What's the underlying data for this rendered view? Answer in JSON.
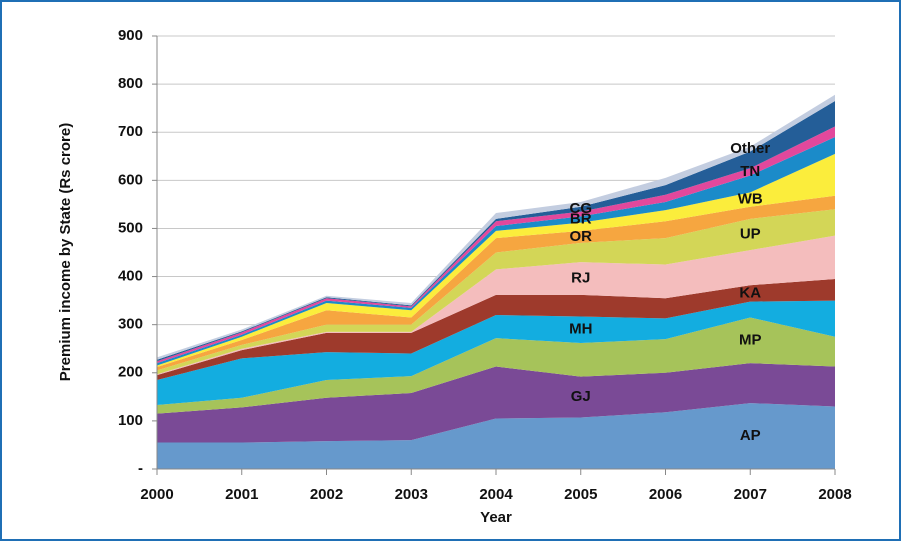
{
  "chart_data": {
    "type": "stacked_area",
    "xlabel": "Year",
    "ylabel": "Premium income by State (Rs crore)",
    "x": [
      2000,
      2001,
      2002,
      2003,
      2004,
      2005,
      2006,
      2007,
      2008
    ],
    "xlim": [
      2000,
      2008
    ],
    "xticks": [
      2000,
      2001,
      2002,
      2003,
      2004,
      2005,
      2006,
      2007,
      2008
    ],
    "ylim": [
      0,
      900
    ],
    "yticks": [
      {
        "value": 0,
        "label": "-"
      },
      100,
      200,
      300,
      400,
      500,
      600,
      700,
      800,
      900
    ],
    "grid": true,
    "series": [
      {
        "name": "AP",
        "color": "#6699cc",
        "values": [
          55,
          55,
          58,
          60,
          105,
          107,
          118,
          137,
          130
        ]
      },
      {
        "name": "GJ",
        "color": "#7a4a96",
        "values": [
          60,
          73,
          90,
          98,
          108,
          85,
          82,
          83,
          83
        ]
      },
      {
        "name": "MP",
        "color": "#a6c35a",
        "values": [
          18,
          20,
          37,
          35,
          59,
          70,
          70,
          95,
          62
        ]
      },
      {
        "name": "MH",
        "color": "#13ade0",
        "values": [
          52,
          82,
          58,
          47,
          48,
          55,
          43,
          33,
          75
        ]
      },
      {
        "name": "KA",
        "color": "#9e3a2c",
        "values": [
          10,
          17,
          40,
          43,
          42,
          45,
          42,
          34,
          45
        ]
      },
      {
        "name": "RJ",
        "color": "#f4bdbd",
        "values": [
          2,
          3,
          2,
          2,
          53,
          68,
          70,
          73,
          90
        ]
      },
      {
        "name": "UP",
        "color": "#d3d657",
        "values": [
          8,
          8,
          15,
          15,
          35,
          40,
          55,
          65,
          55
        ]
      },
      {
        "name": "OR",
        "color": "#f6a640",
        "values": [
          7,
          10,
          30,
          15,
          30,
          25,
          35,
          25,
          28
        ]
      },
      {
        "name": "WB",
        "color": "#fbed3c",
        "values": [
          3,
          7,
          15,
          15,
          15,
          17,
          23,
          30,
          87
        ]
      },
      {
        "name": "BR",
        "color": "#1b8bc9",
        "values": [
          5,
          4,
          5,
          5,
          10,
          13,
          17,
          35,
          35
        ]
      },
      {
        "name": "TN",
        "color": "#e2489c",
        "values": [
          4,
          5,
          5,
          3,
          10,
          10,
          15,
          15,
          22
        ]
      },
      {
        "name": "CG",
        "color": "#245e98",
        "values": [
          3,
          2,
          2,
          2,
          5,
          10,
          20,
          35,
          53
        ]
      },
      {
        "name": "Other",
        "color": "#c3cde0",
        "values": [
          5,
          4,
          3,
          5,
          12,
          10,
          15,
          10,
          13
        ]
      }
    ]
  }
}
